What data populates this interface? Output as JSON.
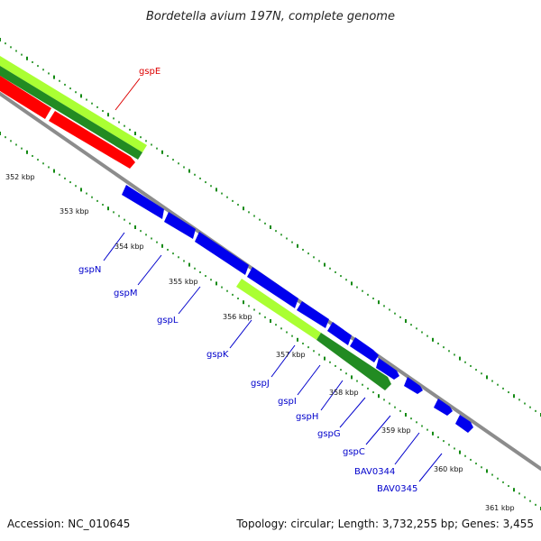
{
  "title": "Bordetella avium 197N, complete genome",
  "accession": "Accession: NC_010645",
  "summary": "Topology: circular; Length: 3,732,255 bp; Genes: 3,455",
  "colors": {
    "backbone": "#8c8c8c",
    "minus_strand_gene": "#0000ee",
    "plus_strand_gene": "#ff0000",
    "label_minus": "#0000cc",
    "label_plus": "#dd0000",
    "feature_light": "#aaff33",
    "feature_dark": "#228b22",
    "tick_dots": "#138a13"
  },
  "ticks": [
    "352 kbp",
    "353 kbp",
    "354 kbp",
    "355 kbp",
    "356 kbp",
    "357 kbp",
    "358 kbp",
    "359 kbp",
    "360 kbp",
    "361 kbp"
  ],
  "genes": [
    {
      "name": "gspE",
      "strand": "plus"
    },
    {
      "name": "gspN",
      "strand": "minus"
    },
    {
      "name": "gspM",
      "strand": "minus"
    },
    {
      "name": "gspL",
      "strand": "minus"
    },
    {
      "name": "gspK",
      "strand": "minus"
    },
    {
      "name": "gspJ",
      "strand": "minus"
    },
    {
      "name": "gspI",
      "strand": "minus"
    },
    {
      "name": "gspH",
      "strand": "minus"
    },
    {
      "name": "gspG",
      "strand": "minus"
    },
    {
      "name": "gspC",
      "strand": "minus"
    },
    {
      "name": "BAV0344",
      "strand": "minus"
    },
    {
      "name": "BAV0345",
      "strand": "minus"
    }
  ]
}
